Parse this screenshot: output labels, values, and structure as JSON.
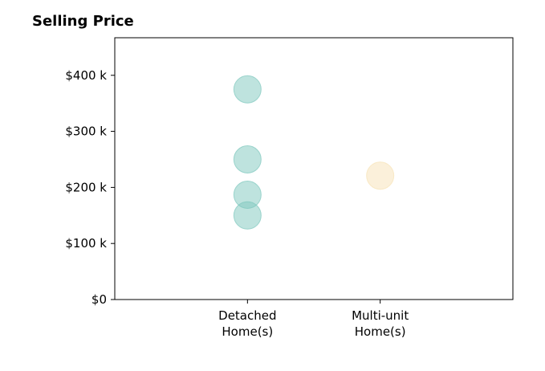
{
  "chart_data": {
    "type": "scatter",
    "title": "Selling Price",
    "xlabel": "",
    "ylabel": "",
    "categories": [
      [
        "Detached",
        "Home(s)"
      ],
      [
        "Multi-unit",
        "Home(s)"
      ]
    ],
    "ylim": [
      0,
      467000
    ],
    "xlim": [
      -1,
      2
    ],
    "y_ticks": [
      {
        "value": 0,
        "label": "$0"
      },
      {
        "value": 100000,
        "label": "$100 k"
      },
      {
        "value": 200000,
        "label": "$200 k"
      },
      {
        "value": 300000,
        "label": "$300 k"
      },
      {
        "value": 400000,
        "label": "$400 k"
      }
    ],
    "series": [
      {
        "category_index": 0,
        "color": "#7ec8be",
        "values": [
          375000,
          250000,
          187000,
          150000
        ]
      },
      {
        "category_index": 1,
        "color": "#f7e2b5",
        "values": [
          221000
        ]
      }
    ],
    "grid": false,
    "legend": "none"
  }
}
